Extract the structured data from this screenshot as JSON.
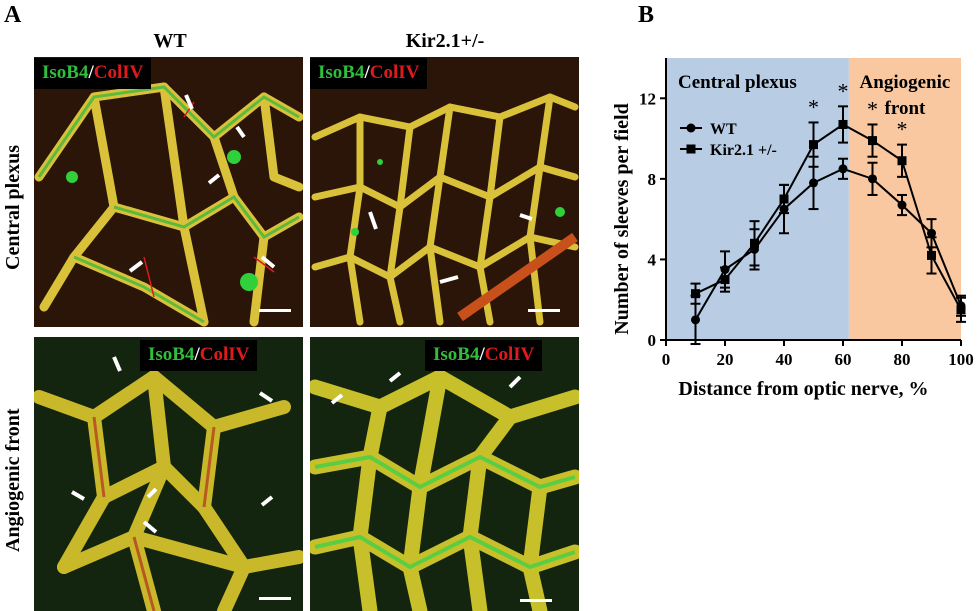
{
  "figure": {
    "panel_a_letter": "A",
    "panel_b_letter": "B",
    "col_titles": [
      "WT",
      "Kir2.1+/-"
    ],
    "row_titles": [
      "Central plexus",
      "Angiogenic front"
    ],
    "stain_label": {
      "isob4": "IsoB4",
      "sep": "/",
      "colliv": "ColIV"
    },
    "colors": {
      "isob4": "#2fbf3a",
      "colliv": "#e01a1a",
      "central_region": "#b8cce4",
      "front_region": "#fac8a0"
    }
  },
  "chart_data": {
    "type": "line",
    "xlabel": "Distance from optic nerve, %",
    "ylabel": "Number of sleeves per field",
    "xlim": [
      0,
      100
    ],
    "ylim": [
      0,
      14
    ],
    "xticks": [
      0,
      20,
      40,
      60,
      80,
      100
    ],
    "yticks": [
      0,
      4,
      8,
      12
    ],
    "regions": [
      {
        "label": "Central plexus",
        "from": 0,
        "to": 62
      },
      {
        "label": "Angiogenic front",
        "from": 62,
        "to": 100
      }
    ],
    "legend_position": "upper-left",
    "series": [
      {
        "name": "WT",
        "marker": "circle",
        "x": [
          10,
          20,
          30,
          40,
          50,
          60,
          70,
          80,
          90,
          100
        ],
        "y": [
          1.0,
          3.5,
          4.5,
          6.5,
          7.8,
          8.5,
          8.0,
          6.7,
          5.3,
          1.7
        ],
        "err": [
          1.2,
          0.9,
          1.0,
          1.2,
          1.3,
          0.5,
          0.8,
          0.5,
          0.7,
          0.5
        ]
      },
      {
        "name": "Kir2.1 +/-",
        "marker": "square",
        "x": [
          10,
          20,
          30,
          40,
          50,
          60,
          70,
          80,
          90,
          100
        ],
        "y": [
          2.3,
          3.0,
          4.8,
          7.0,
          9.7,
          10.7,
          9.9,
          8.9,
          4.2,
          1.5
        ],
        "err": [
          0.5,
          0.6,
          1.1,
          0.7,
          1.1,
          0.9,
          0.8,
          0.8,
          0.9,
          0.6
        ]
      }
    ],
    "significance": [
      {
        "x": 50,
        "label": "*"
      },
      {
        "x": 60,
        "label": "*"
      },
      {
        "x": 70,
        "label": "*"
      },
      {
        "x": 80,
        "label": "*"
      }
    ]
  }
}
